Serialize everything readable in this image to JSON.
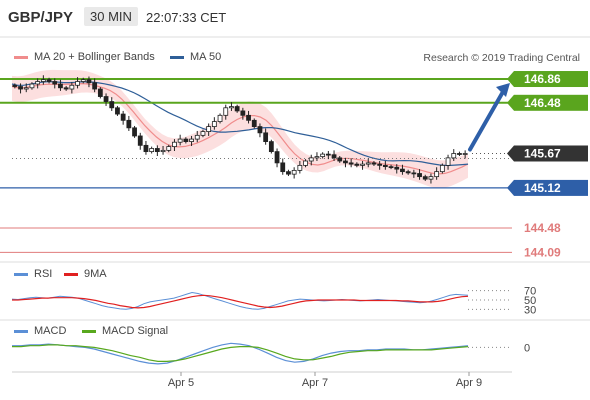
{
  "header": {
    "symbol": "GBP/JPY",
    "timeframe": "30 MIN",
    "time": "22:07:33 CET"
  },
  "legend_main": [
    {
      "label": "MA 20 + Bollinger Bands",
      "color": "#f08c8c"
    },
    {
      "label": "MA 50",
      "color": "#2f5f98"
    }
  ],
  "credit": "Research © 2019 Trading Central",
  "colors": {
    "resistance": "#5aa51e",
    "support": "#2e5fa8",
    "target_low": "#e07b7b",
    "arrow": "#2e5fa8",
    "band_fill": "#fbd4d4"
  },
  "chart_data": [
    {
      "type": "line",
      "name": "price",
      "ylim": [
        144.0,
        147.1
      ],
      "x_ticks": [
        "Apr 5",
        "Apr 7",
        "Apr 9"
      ],
      "price_close": [
        146.74,
        146.7,
        146.72,
        146.78,
        146.82,
        146.85,
        146.82,
        146.78,
        146.72,
        146.7,
        146.76,
        146.82,
        146.85,
        146.8,
        146.7,
        146.58,
        146.5,
        146.4,
        146.3,
        146.2,
        146.08,
        145.95,
        145.8,
        145.7,
        145.75,
        145.7,
        145.72,
        145.78,
        145.85,
        145.9,
        145.86,
        145.9,
        145.96,
        146.02,
        146.1,
        146.18,
        146.28,
        146.4,
        146.42,
        146.35,
        146.28,
        146.2,
        146.1,
        146.0,
        145.86,
        145.7,
        145.52,
        145.38,
        145.34,
        145.4,
        145.48,
        145.55,
        145.6,
        145.62,
        145.66,
        145.65,
        145.6,
        145.55,
        145.52,
        145.5,
        145.48,
        145.5,
        145.52,
        145.5,
        145.48,
        145.46,
        145.45,
        145.42,
        145.38,
        145.36,
        145.35,
        145.3,
        145.26,
        145.3,
        145.38,
        145.48,
        145.6,
        145.67,
        145.66,
        145.67
      ],
      "current_price": 145.67,
      "levels": [
        {
          "value": 146.86,
          "label": "146.86",
          "kind": "resistance"
        },
        {
          "value": 146.48,
          "label": "146.48",
          "kind": "resistance"
        },
        {
          "value": 145.67,
          "label": "145.67",
          "kind": "current"
        },
        {
          "value": 145.12,
          "label": "145.12",
          "kind": "support"
        },
        {
          "value": 144.48,
          "label": "144.48",
          "kind": "target"
        },
        {
          "value": 144.09,
          "label": "144.09",
          "kind": "target"
        }
      ],
      "arrow_target": 146.86
    },
    {
      "type": "line",
      "name": "RSI panel",
      "legend": [
        {
          "label": "RSI",
          "color": "#5b8fd6"
        },
        {
          "label": "9MA",
          "color": "#e02020"
        }
      ],
      "ylim": [
        20,
        80
      ],
      "levels": [
        {
          "value": 70,
          "label": "70"
        },
        {
          "value": 50,
          "label": "50"
        },
        {
          "value": 30,
          "label": "30"
        }
      ],
      "rsi": [
        52,
        51,
        53,
        55,
        56,
        55,
        54,
        56,
        58,
        57,
        56,
        54,
        50,
        46,
        42,
        38,
        35,
        33,
        31,
        30,
        32,
        36,
        42,
        46,
        48,
        50,
        52,
        54,
        58,
        62,
        66,
        64,
        60,
        56,
        52,
        48,
        44,
        40,
        36,
        33,
        31,
        30,
        32,
        36,
        40,
        44,
        48,
        50,
        52,
        51,
        50,
        49,
        48,
        49,
        50,
        51,
        50,
        49,
        48,
        49,
        50,
        51,
        50,
        49,
        48,
        47,
        46,
        45,
        44,
        45,
        48,
        52,
        56,
        60,
        62,
        61,
        60
      ],
      "ma": [
        50,
        50,
        51,
        52,
        53,
        54,
        54,
        55,
        55,
        55,
        55,
        54,
        53,
        51,
        49,
        46,
        43,
        41,
        38,
        36,
        34,
        33,
        34,
        36,
        39,
        42,
        45,
        48,
        51,
        54,
        57,
        59,
        60,
        59,
        57,
        55,
        52,
        49,
        46,
        43,
        40,
        37,
        35,
        34,
        35,
        37,
        40,
        43,
        46,
        48,
        49,
        50,
        50,
        50,
        50,
        50,
        50,
        50,
        49,
        49,
        49,
        49,
        49,
        49,
        49,
        48,
        48,
        47,
        46,
        46,
        46,
        47,
        49,
        52,
        55,
        57,
        58
      ]
    },
    {
      "type": "line",
      "name": "MACD panel",
      "legend": [
        {
          "label": "MACD",
          "color": "#5b8fd6"
        },
        {
          "label": "MACD Signal",
          "color": "#58a81e"
        }
      ],
      "levels": [
        {
          "value": 0,
          "label": "0"
        }
      ],
      "ylim": [
        -0.25,
        0.15
      ],
      "macd": [
        0.02,
        0.02,
        0.03,
        0.03,
        0.04,
        0.03,
        0.02,
        0.01,
        0.0,
        -0.02,
        -0.05,
        -0.08,
        -0.11,
        -0.14,
        -0.17,
        -0.19,
        -0.2,
        -0.19,
        -0.16,
        -0.12,
        -0.08,
        -0.04,
        0.0,
        0.03,
        0.05,
        0.04,
        0.02,
        -0.02,
        -0.07,
        -0.12,
        -0.16,
        -0.18,
        -0.17,
        -0.14,
        -0.1,
        -0.07,
        -0.05,
        -0.04,
        -0.04,
        -0.03,
        -0.03,
        -0.02,
        -0.02,
        -0.02,
        -0.03,
        -0.03,
        -0.02,
        -0.01,
        0.0,
        0.01,
        0.02
      ],
      "signal": [
        0.01,
        0.01,
        0.02,
        0.02,
        0.03,
        0.03,
        0.02,
        0.02,
        0.01,
        0.0,
        -0.02,
        -0.04,
        -0.07,
        -0.1,
        -0.12,
        -0.15,
        -0.17,
        -0.17,
        -0.16,
        -0.14,
        -0.11,
        -0.08,
        -0.05,
        -0.02,
        0.0,
        0.01,
        0.01,
        0.0,
        -0.03,
        -0.07,
        -0.11,
        -0.14,
        -0.15,
        -0.15,
        -0.13,
        -0.11,
        -0.08,
        -0.06,
        -0.05,
        -0.04,
        -0.04,
        -0.03,
        -0.03,
        -0.03,
        -0.03,
        -0.03,
        -0.03,
        -0.02,
        -0.01,
        0.0,
        0.01
      ]
    }
  ]
}
